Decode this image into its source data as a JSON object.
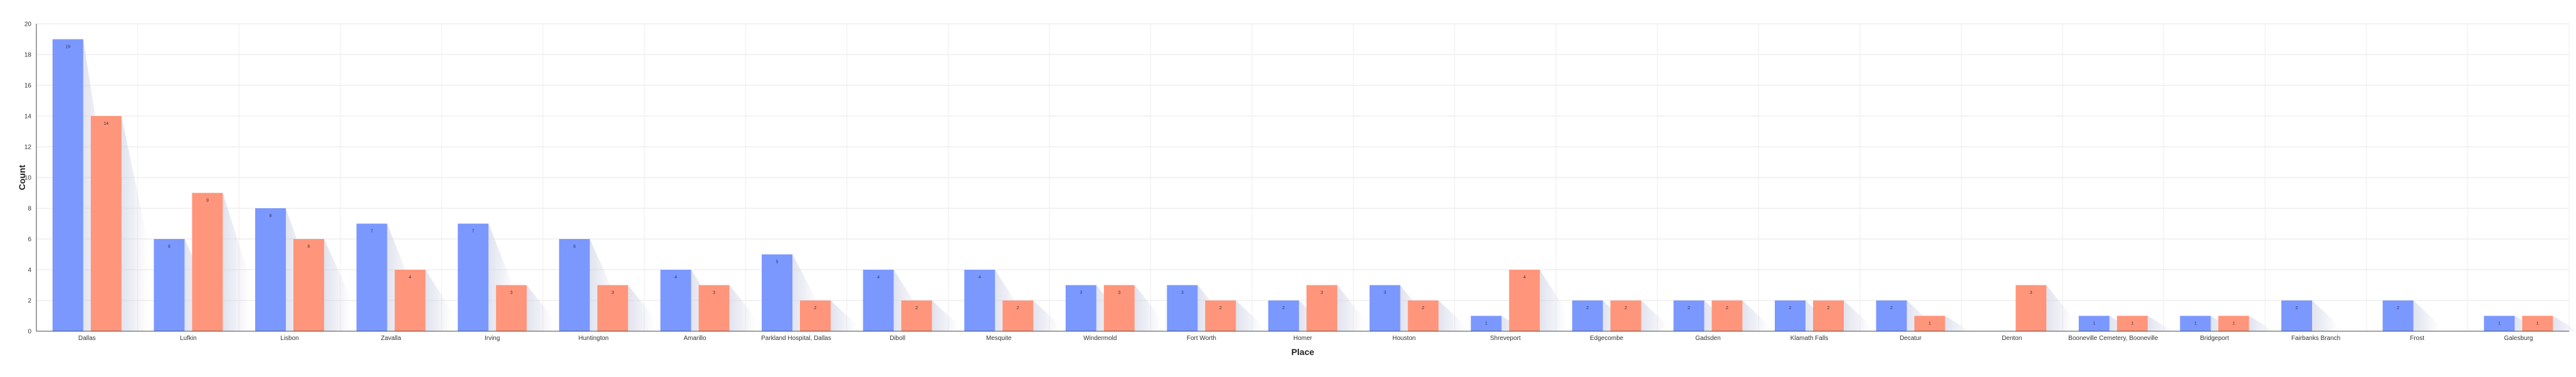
{
  "chart_data": {
    "type": "bar",
    "title": "",
    "xlabel": "Place",
    "ylabel": "Count",
    "ylim": [
      0,
      20
    ],
    "yticks": [
      0,
      2,
      4,
      6,
      8,
      10,
      12,
      14,
      16,
      18,
      20
    ],
    "grid": true,
    "legend": "none",
    "categories": [
      "Dallas",
      "Lufkin",
      "Lisbon",
      "Zavalla",
      "Irving",
      "Huntington",
      "Amarillo",
      "Parkland Hospital, Dallas",
      "Diboll",
      "Mesquite",
      "Windermold",
      "Fort Worth",
      "Homer",
      "Houston",
      "Shreveport",
      "Edgecombe",
      "Gadsden",
      "Klamath Falls",
      "Decatur",
      "Denton",
      "Booneville Cemetery, Booneville",
      "Bridgeport",
      "Fairbanks Branch",
      "Frost",
      "Galesburg"
    ],
    "series": [
      {
        "color": "#7b98ff",
        "values": [
          19,
          6,
          8,
          7,
          7,
          6,
          4,
          5,
          4,
          4,
          3,
          3,
          2,
          3,
          1,
          2,
          2,
          2,
          2,
          0,
          1,
          1,
          2,
          2,
          1
        ],
        "labels": [
          "19",
          "6",
          "8",
          "7",
          "7",
          "6",
          "4",
          "5",
          "4",
          "4",
          "3",
          "3",
          "2",
          "3",
          "1",
          "2",
          "2",
          "2",
          "2",
          "",
          "1",
          "1",
          "2",
          "2",
          "1"
        ]
      },
      {
        "color": "#ff957a",
        "values": [
          14,
          9,
          6,
          4,
          3,
          3,
          3,
          2,
          2,
          2,
          3,
          2,
          3,
          2,
          4,
          2,
          2,
          2,
          1,
          3,
          1,
          1,
          0,
          0,
          1
        ],
        "labels": [
          "14",
          "9",
          "6",
          "4",
          "3",
          "3",
          "3",
          "2",
          "2",
          "2",
          "3",
          "2",
          "3",
          "2",
          "4",
          "2",
          "2",
          "2",
          "1",
          "3",
          "1",
          "1",
          "",
          "",
          "1"
        ]
      }
    ]
  }
}
